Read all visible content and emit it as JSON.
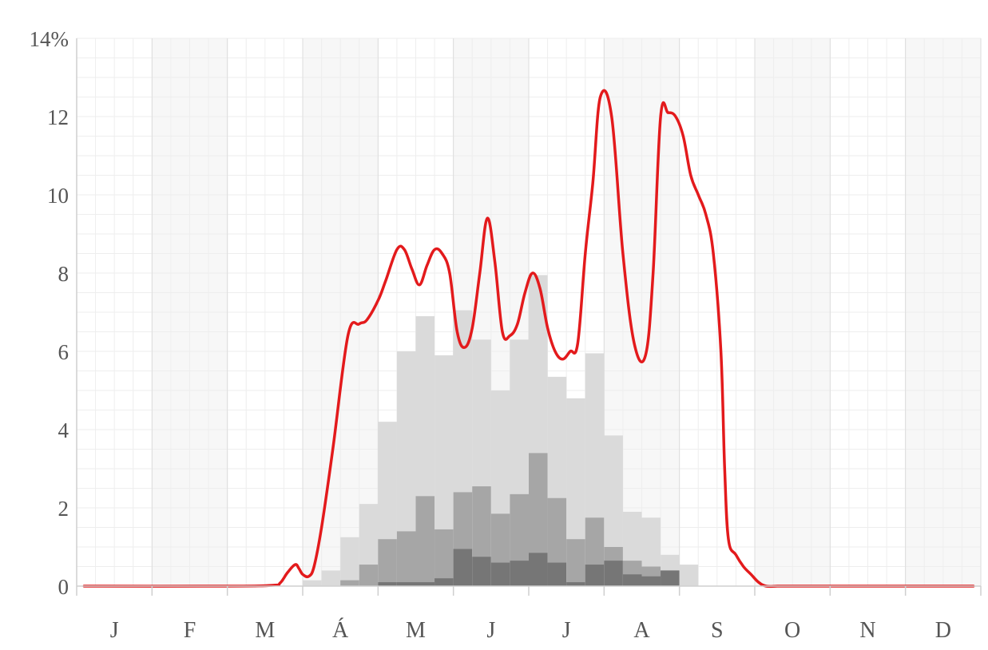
{
  "chart_data": {
    "type": "bar",
    "title": "",
    "xlabel": "",
    "ylabel": "",
    "ylim": [
      0,
      14
    ],
    "y_unit": "%",
    "y_ticks": [
      "0",
      "2",
      "4",
      "6",
      "8",
      "10",
      "12",
      "14%"
    ],
    "x_ticks": [
      "J",
      "F",
      "M",
      "Á",
      "M",
      "J",
      "J",
      "A",
      "S",
      "O",
      "N",
      "D"
    ],
    "x_unit": "month (day-of-year scale, 0–12)",
    "grid": true,
    "legend": "none",
    "bar_bins": [
      {
        "start": 3.0,
        "end": 3.25,
        "light": 0.15,
        "mid": 0.0,
        "dark": 0.0
      },
      {
        "start": 3.25,
        "end": 3.5,
        "light": 0.4,
        "mid": 0.0,
        "dark": 0.0
      },
      {
        "start": 3.5,
        "end": 3.75,
        "light": 1.25,
        "mid": 0.15,
        "dark": 0.0
      },
      {
        "start": 3.75,
        "end": 4.0,
        "light": 2.1,
        "mid": 0.55,
        "dark": 0.0
      },
      {
        "start": 4.0,
        "end": 4.25,
        "light": 4.2,
        "mid": 1.2,
        "dark": 0.1
      },
      {
        "start": 4.25,
        "end": 4.5,
        "light": 6.0,
        "mid": 1.4,
        "dark": 0.1
      },
      {
        "start": 4.5,
        "end": 4.75,
        "light": 6.9,
        "mid": 2.3,
        "dark": 0.1
      },
      {
        "start": 4.75,
        "end": 5.0,
        "light": 5.9,
        "mid": 1.45,
        "dark": 0.2
      },
      {
        "start": 5.0,
        "end": 5.25,
        "light": 7.05,
        "mid": 2.4,
        "dark": 0.95
      },
      {
        "start": 5.25,
        "end": 5.5,
        "light": 6.3,
        "mid": 2.55,
        "dark": 0.75
      },
      {
        "start": 5.5,
        "end": 5.75,
        "light": 5.0,
        "mid": 1.85,
        "dark": 0.6
      },
      {
        "start": 5.75,
        "end": 6.0,
        "light": 6.3,
        "mid": 2.35,
        "dark": 0.65
      },
      {
        "start": 6.0,
        "end": 6.25,
        "light": 7.95,
        "mid": 3.4,
        "dark": 0.85
      },
      {
        "start": 6.25,
        "end": 6.5,
        "light": 5.35,
        "mid": 2.25,
        "dark": 0.6
      },
      {
        "start": 6.5,
        "end": 6.75,
        "light": 4.8,
        "mid": 1.2,
        "dark": 0.1
      },
      {
        "start": 6.75,
        "end": 7.0,
        "light": 5.95,
        "mid": 1.75,
        "dark": 0.55
      },
      {
        "start": 7.0,
        "end": 7.25,
        "light": 3.85,
        "mid": 1.0,
        "dark": 0.65
      },
      {
        "start": 7.25,
        "end": 7.5,
        "light": 1.9,
        "mid": 0.65,
        "dark": 0.3
      },
      {
        "start": 7.5,
        "end": 7.75,
        "light": 1.75,
        "mid": 0.5,
        "dark": 0.25
      },
      {
        "start": 7.75,
        "end": 8.0,
        "light": 0.8,
        "mid": 0.4,
        "dark": 0.4
      },
      {
        "start": 8.0,
        "end": 8.25,
        "light": 0.55,
        "mid": 0.0,
        "dark": 0.0
      }
    ],
    "series": [
      {
        "type": "line",
        "color": "#e31a1c",
        "x": [
          0.1,
          2.0,
          2.6,
          2.7,
          2.8,
          2.9,
          2.95,
          3.0,
          3.08,
          3.15,
          3.25,
          3.4,
          3.6,
          3.75,
          3.85,
          4.0,
          4.1,
          4.25,
          4.35,
          4.45,
          4.55,
          4.65,
          4.75,
          4.85,
          4.95,
          5.05,
          5.15,
          5.25,
          5.35,
          5.45,
          5.55,
          5.65,
          5.75,
          5.85,
          5.95,
          6.05,
          6.15,
          6.25,
          6.35,
          6.45,
          6.55,
          6.65,
          6.75,
          6.85,
          6.95,
          7.1,
          7.25,
          7.4,
          7.55,
          7.65,
          7.75,
          7.85,
          7.95,
          8.05,
          8.15,
          8.25,
          8.35,
          8.45,
          8.55,
          8.6,
          8.65,
          8.75,
          8.85,
          8.95,
          9.05,
          9.15,
          9.3,
          9.45,
          9.6,
          9.75,
          9.85,
          10.0,
          10.15,
          10.3,
          10.5,
          11.0,
          11.9
        ],
        "y": [
          0,
          0,
          0.02,
          0.08,
          0.35,
          0.55,
          0.45,
          0.3,
          0.25,
          0.5,
          1.5,
          3.5,
          6.4,
          6.7,
          6.8,
          7.3,
          7.8,
          8.6,
          8.6,
          8.1,
          7.7,
          8.2,
          8.6,
          8.5,
          8.0,
          6.5,
          6.1,
          6.6,
          8.0,
          9.4,
          8.3,
          6.5,
          6.4,
          6.7,
          7.5,
          8.0,
          7.6,
          6.6,
          6.0,
          5.8,
          6.0,
          6.2,
          8.5,
          10.3,
          12.5,
          12.0,
          8.5,
          6.2,
          5.9,
          8.0,
          12.0,
          12.1,
          12.0,
          11.5,
          10.5,
          10.0,
          9.5,
          8.5,
          6.0,
          3.0,
          1.2,
          0.8,
          0.5,
          0.3,
          0.1,
          0.0,
          0,
          0,
          0,
          0,
          0,
          0,
          0,
          0,
          0,
          0,
          0
        ]
      }
    ],
    "colors": {
      "line": "#e31a1c",
      "bar_light": "#dadada",
      "bar_mid": "#a6a6a6",
      "bar_dark": "#767676",
      "axis": "#cfcfcf",
      "grid_minor": "#eeeeee",
      "grid_major": "#dddddd",
      "band": "#f7f7f7",
      "tick_text": "#555555"
    }
  }
}
